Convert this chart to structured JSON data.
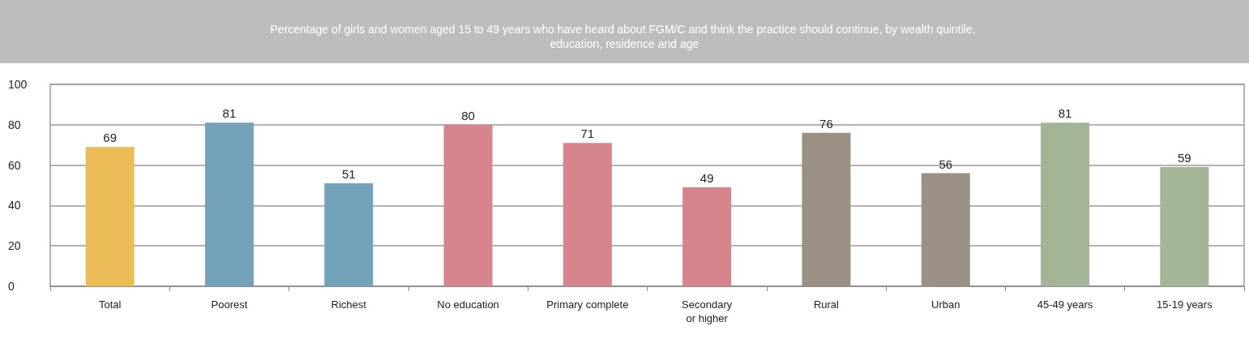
{
  "chart_data": {
    "type": "bar",
    "title": "Percentage of girls and women aged 15 to 49 years who have heard about FGM/C and think the practice should continue, by wealth quintile, education, residence and age",
    "categories": [
      "Total",
      "Poorest",
      "Richest",
      "No education",
      "Primary complete",
      "Secondary\nor higher",
      "Rural",
      "Urban",
      "45-49 years",
      "15-19 years"
    ],
    "values": [
      69,
      81,
      51,
      80,
      71,
      49,
      76,
      56,
      81,
      59
    ],
    "colors": [
      "#ecbc57",
      "#74a2b9",
      "#74a2b9",
      "#d6848e",
      "#d6848e",
      "#d6848e",
      "#9b9084",
      "#9b9084",
      "#a4b496",
      "#a4b496"
    ],
    "ylim": [
      0,
      100
    ],
    "yticks": [
      0,
      20,
      40,
      60,
      80,
      100
    ],
    "grid": "y",
    "data_labels": true
  }
}
